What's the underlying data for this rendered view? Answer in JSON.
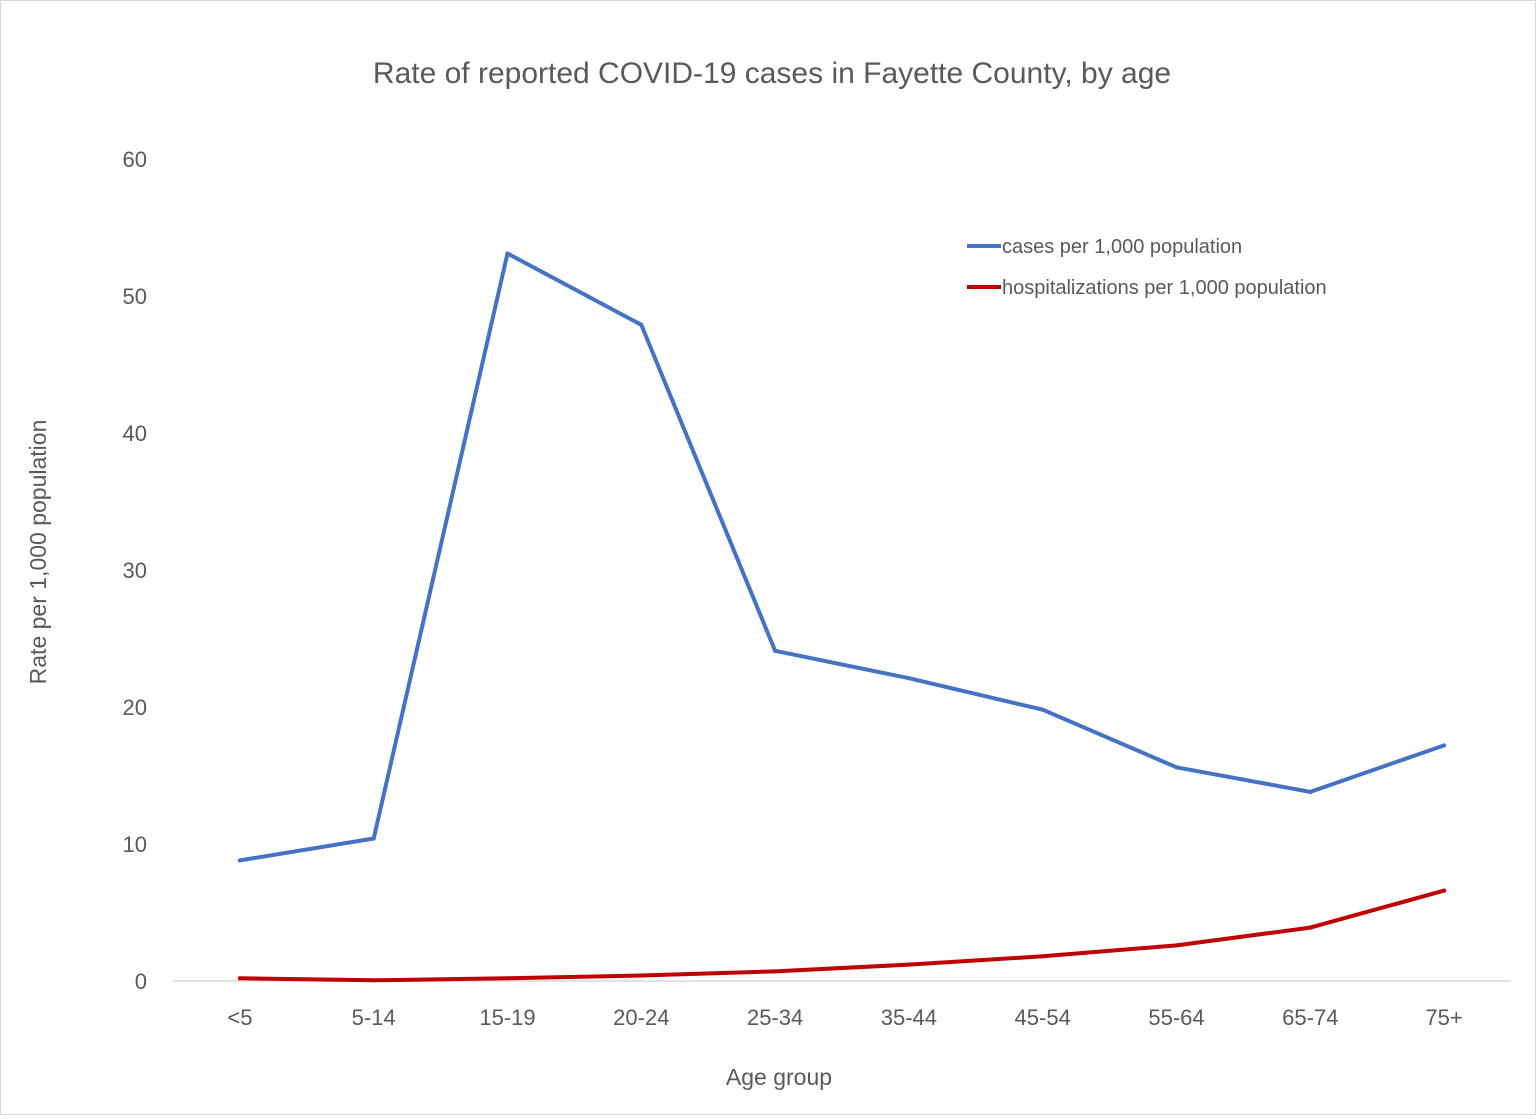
{
  "chart_data": {
    "type": "line",
    "title": "Rate of reported COVID-19 cases in Fayette County, by age",
    "xlabel": "Age group",
    "ylabel": "Rate per 1,000 population",
    "categories": [
      "<5",
      "5-14",
      "15-19",
      "20-24",
      "25-34",
      "35-44",
      "45-54",
      "55-64",
      "65-74",
      "75+"
    ],
    "ylim": [
      0,
      60
    ],
    "yticks": [
      "0",
      "10",
      "20",
      "30",
      "40",
      "50",
      "60"
    ],
    "grid": false,
    "legend_position": "top-right",
    "series": [
      {
        "name": "cases per 1,000 population",
        "color": "#4472c4",
        "values": [
          8.8,
          10.4,
          53.1,
          47.9,
          24.1,
          22.1,
          19.8,
          15.6,
          13.8,
          17.2
        ]
      },
      {
        "name": "hospitalizations per 1,000 population",
        "color": "#c00000",
        "values": [
          0.2,
          0.05,
          0.2,
          0.4,
          0.7,
          1.2,
          1.8,
          2.6,
          3.9,
          6.6
        ]
      }
    ]
  }
}
